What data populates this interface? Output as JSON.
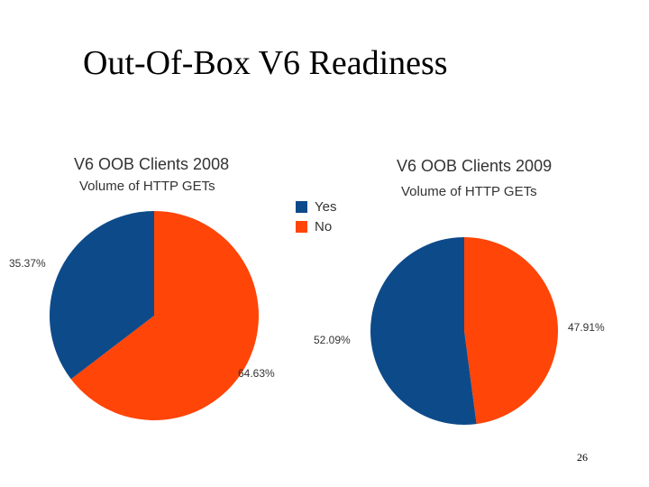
{
  "slide": {
    "title": "Out-Of-Box V6 Readiness",
    "page_number": "26"
  },
  "legend": [
    {
      "label": "Yes",
      "color": "#0d4a8a"
    },
    {
      "label": "No",
      "color": "#ff4507"
    }
  ],
  "chart_data": [
    {
      "type": "pie",
      "title": "V6 OOB Clients 2008",
      "subtitle": "Volume of HTTP GETs",
      "slices": [
        {
          "name": "Yes",
          "value": 35.37,
          "label": "35.37%",
          "color": "#0d4a8a"
        },
        {
          "name": "No",
          "value": 64.63,
          "label": "64.63%",
          "color": "#ff4507"
        }
      ]
    },
    {
      "type": "pie",
      "title": "V6 OOB Clients 2009",
      "subtitle": "Volume of HTTP GETs",
      "slices": [
        {
          "name": "Yes",
          "value": 52.09,
          "label": "52.09%",
          "color": "#0d4a8a"
        },
        {
          "name": "No",
          "value": 47.91,
          "label": "47.91%",
          "color": "#ff4507"
        }
      ]
    }
  ]
}
